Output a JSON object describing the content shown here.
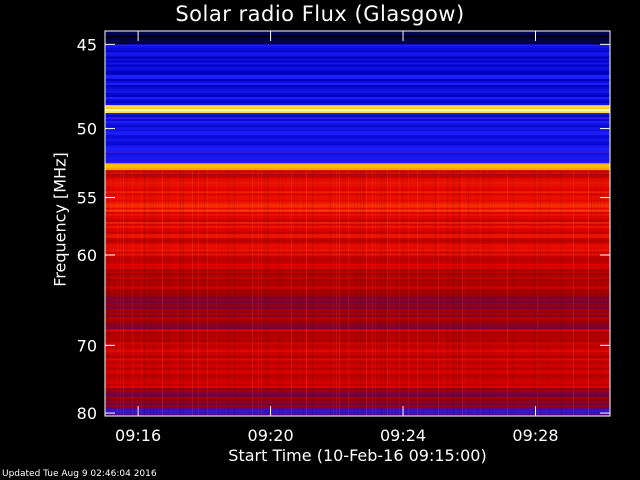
{
  "chart_data": {
    "type": "heatmap",
    "title": "Solar radio Flux (Glasgow)",
    "ylabel": "Frequency [MHz]",
    "xlabel": "Start Time (10-Feb-16 09:15:00)",
    "yticks": [
      45,
      50,
      55,
      60,
      70,
      80
    ],
    "ytick_labels": [
      "45",
      "50",
      "55",
      "60",
      "70",
      "80"
    ],
    "ylim": [
      44.3,
      80.5
    ],
    "y_scale": "reciprocal",
    "xticks": [
      "09:16",
      "09:20",
      "09:24",
      "09:28"
    ],
    "xlim": [
      "09:15:00",
      "09:30:15"
    ],
    "colormap": [
      "#000010",
      "#0000c0",
      "#2020ff",
      "#600060",
      "#a00000",
      "#e00000",
      "#ff4000",
      "#ffc000",
      "#ffffc0"
    ],
    "bands": [
      {
        "from": 44.3,
        "to": 45.0,
        "level": 0.05
      },
      {
        "from": 45.0,
        "to": 48.5,
        "level": 0.18
      },
      {
        "from": 48.5,
        "to": 49.0,
        "level": 0.95
      },
      {
        "from": 49.0,
        "to": 50.3,
        "level": 0.2
      },
      {
        "from": 50.3,
        "to": 52.4,
        "level": 0.22
      },
      {
        "from": 52.4,
        "to": 52.9,
        "level": 0.88
      },
      {
        "from": 52.9,
        "to": 54.5,
        "level": 0.6
      },
      {
        "from": 54.5,
        "to": 56.5,
        "level": 0.68
      },
      {
        "from": 56.5,
        "to": 61.0,
        "level": 0.62
      },
      {
        "from": 61.0,
        "to": 64.0,
        "level": 0.56
      },
      {
        "from": 64.0,
        "to": 68.0,
        "level": 0.48
      },
      {
        "from": 68.0,
        "to": 72.0,
        "level": 0.58
      },
      {
        "from": 72.0,
        "to": 76.0,
        "level": 0.55
      },
      {
        "from": 76.0,
        "to": 79.0,
        "level": 0.44
      },
      {
        "from": 79.0,
        "to": 80.5,
        "level": 0.3
      }
    ],
    "grid": false
  },
  "footer": "Updated Tue Aug  9 02:46:04 2016"
}
